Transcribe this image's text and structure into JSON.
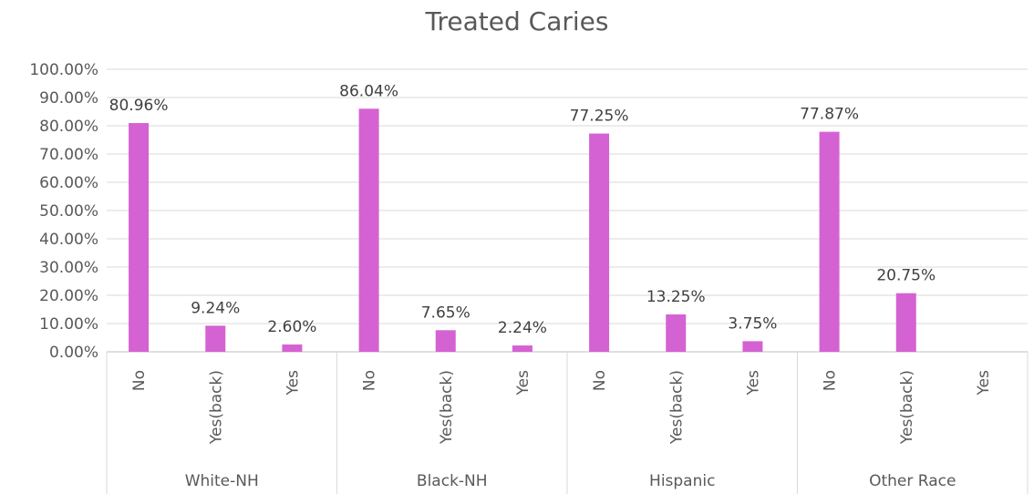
{
  "chart_data": {
    "type": "bar",
    "title": "Treated Caries",
    "xlabel": "",
    "ylabel": "",
    "ylim": [
      0,
      1
    ],
    "y_ticks": [
      "0.00%",
      "10.00%",
      "20.00%",
      "30.00%",
      "40.00%",
      "50.00%",
      "60.00%",
      "70.00%",
      "80.00%",
      "90.00%",
      "100.00%"
    ],
    "grid": true,
    "legend": "none",
    "bar_color": "#D562D2",
    "categories": [
      "No",
      "Yes(back)",
      "Yes"
    ],
    "groups": [
      {
        "name": "White-NH",
        "values": [
          0.8096,
          0.0924,
          0.026
        ],
        "labels": [
          "80.96%",
          "9.24%",
          "2.60%"
        ]
      },
      {
        "name": "Black-NH",
        "values": [
          0.8604,
          0.0765,
          0.0224
        ],
        "labels": [
          "86.04%",
          "7.65%",
          "2.24%"
        ]
      },
      {
        "name": "Hispanic",
        "values": [
          0.7725,
          0.1325,
          0.0375
        ],
        "labels": [
          "77.25%",
          "13.25%",
          "3.75%"
        ]
      },
      {
        "name": "Other Race",
        "values": [
          0.7787,
          0.2075,
          null
        ],
        "labels": [
          "77.87%",
          "20.75%",
          ""
        ]
      }
    ]
  }
}
